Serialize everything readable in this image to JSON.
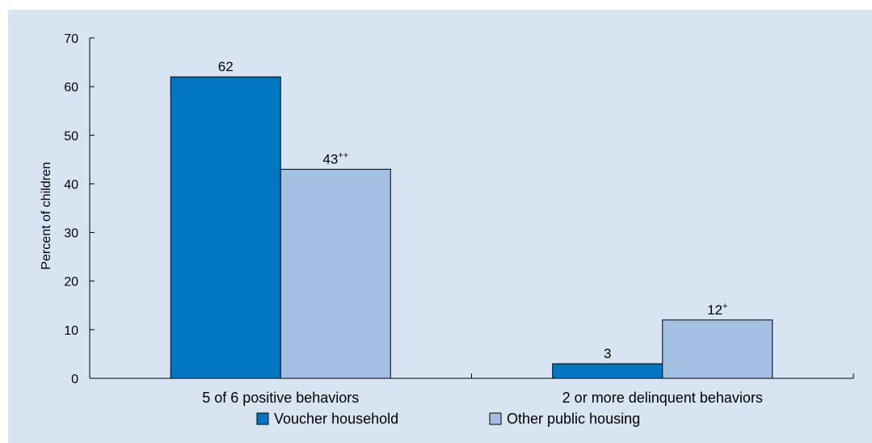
{
  "chart_data": {
    "type": "bar",
    "title": "",
    "xlabel": "",
    "ylabel": "Percent of children",
    "ylim": [
      0,
      70
    ],
    "yticks": [
      0,
      10,
      20,
      30,
      40,
      50,
      60,
      70
    ],
    "categories": [
      "5 of 6 positive behaviors",
      "2 or more delinquent behaviors"
    ],
    "series": [
      {
        "name": "Voucher household",
        "values": [
          62,
          3
        ],
        "labels": [
          {
            "text": "62",
            "sup": ""
          },
          {
            "text": "3",
            "sup": ""
          }
        ],
        "color": "#0077c0"
      },
      {
        "name": "Other public housing",
        "values": [
          43,
          12
        ],
        "labels": [
          {
            "text": "43",
            "sup": "++"
          },
          {
            "text": "12",
            "sup": "+"
          }
        ],
        "color": "#a3bfe2"
      }
    ],
    "grid": false,
    "legend_position": "bottom"
  }
}
